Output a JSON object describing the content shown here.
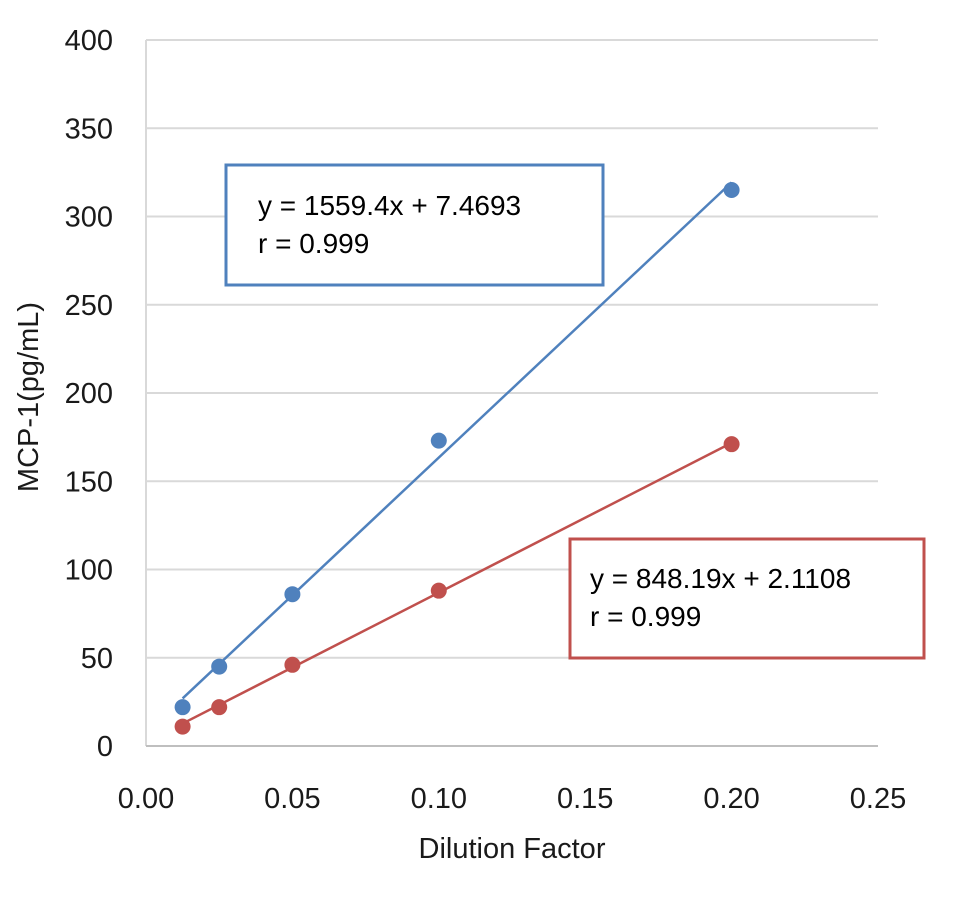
{
  "chart_data": {
    "type": "scatter",
    "xlabel": "Dilution Factor",
    "ylabel": "MCP-1(pg/mL)",
    "xlim": [
      0,
      0.25
    ],
    "ylim": [
      0,
      400
    ],
    "x_ticks": [
      "0.00",
      "0.05",
      "0.10",
      "0.15",
      "0.20",
      "0.25"
    ],
    "y_ticks": [
      "0",
      "50",
      "100",
      "150",
      "200",
      "250",
      "300",
      "350",
      "400"
    ],
    "x_tick_values": [
      0,
      0.05,
      0.1,
      0.15,
      0.2,
      0.25
    ],
    "y_tick_values": [
      0,
      50,
      100,
      150,
      200,
      250,
      300,
      350,
      400
    ],
    "grid": "horizontal",
    "series": [
      {
        "color": "#4f81bd",
        "x": [
          0.0125,
          0.025,
          0.05,
          0.1,
          0.2
        ],
        "y": [
          22,
          45,
          86,
          173,
          315
        ],
        "trendline": {
          "slope": 1559.4,
          "intercept": 7.4693
        },
        "equation": "y = 1559.4x + 7.4693",
        "r_label": "r = 0.999"
      },
      {
        "color": "#c0504d",
        "x": [
          0.0125,
          0.025,
          0.05,
          0.1,
          0.2
        ],
        "y": [
          11,
          22,
          46,
          88,
          171
        ],
        "trendline": {
          "slope": 848.19,
          "intercept": 2.1108
        },
        "equation": "y = 848.19x + 2.1108",
        "r_label": "r = 0.999"
      }
    ]
  }
}
